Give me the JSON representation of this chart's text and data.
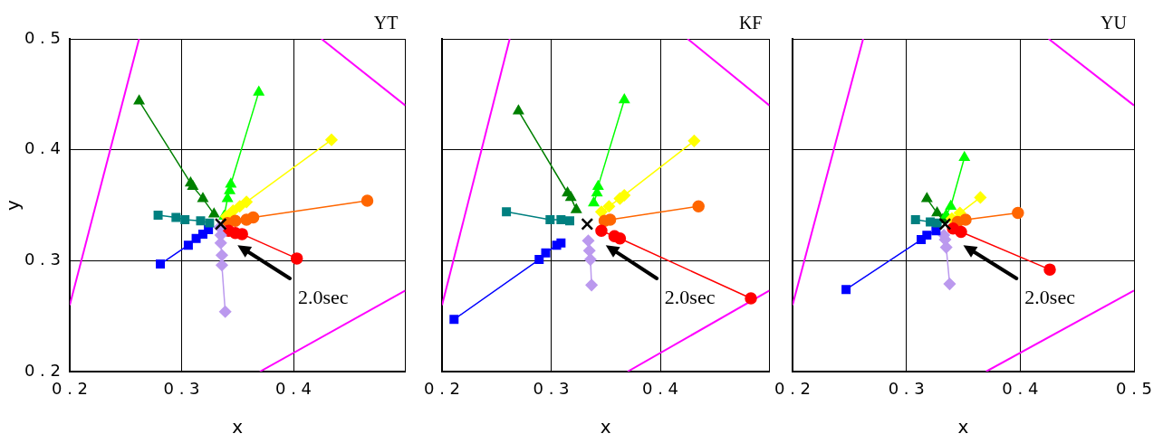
{
  "chart_data": [
    {
      "type": "line",
      "title": "YT",
      "xlabel": "x",
      "ylabel": "y",
      "xlim": [
        0.2,
        0.5
      ],
      "ylim": [
        0.2,
        0.5
      ],
      "xticks": [
        0.2,
        0.3,
        0.4,
        {
          "value": 0.5,
          "label": null
        }
      ],
      "yticks": [
        0.2,
        0.3,
        0.4,
        0.5
      ],
      "grid": true,
      "legend": false,
      "annotations": [
        "2.0sec"
      ],
      "series": [
        {
          "color": "#ff00ff",
          "marker": "none",
          "x": [
            0.2,
            0.262
          ],
          "values": [
            0.26,
            0.5
          ]
        },
        {
          "color": "#ff00ff",
          "marker": "none",
          "x": [
            0.425,
            0.5
          ],
          "values": [
            0.5,
            0.44
          ]
        },
        {
          "color": "#ff00ff",
          "marker": "none",
          "x": [
            0.37,
            0.5
          ],
          "values": [
            0.2,
            0.273
          ]
        },
        {
          "color": "#008000",
          "marker": "triangle",
          "x": [
            0.262,
            0.308,
            0.31,
            0.319,
            0.329
          ],
          "values": [
            0.444,
            0.37,
            0.367,
            0.356,
            0.342
          ]
        },
        {
          "color": "#00ff00",
          "marker": "triangle",
          "x": [
            0.369,
            0.344,
            0.343,
            0.341,
            0.338
          ],
          "values": [
            0.452,
            0.369,
            0.363,
            0.356,
            0.34
          ]
        },
        {
          "color": "#ffff00",
          "marker": "diamond",
          "x": [
            0.434,
            0.358,
            0.352,
            0.346,
            0.34
          ],
          "values": [
            0.409,
            0.353,
            0.349,
            0.345,
            0.34
          ]
        },
        {
          "color": "#ff6600",
          "marker": "circle",
          "x": [
            0.466,
            0.364,
            0.358,
            0.348,
            0.341
          ],
          "values": [
            0.354,
            0.339,
            0.337,
            0.336,
            0.334
          ]
        },
        {
          "color": "#ff0000",
          "marker": "circle",
          "x": [
            0.403,
            0.354,
            0.348,
            0.342
          ],
          "values": [
            0.302,
            0.324,
            0.325,
            0.327
          ]
        },
        {
          "color": "#bb99ee",
          "marker": "diamond",
          "x": [
            0.339,
            0.336,
            0.336,
            0.335,
            0.335,
            0.334
          ],
          "values": [
            0.254,
            0.296,
            0.305,
            0.316,
            0.323,
            0.33
          ]
        },
        {
          "color": "#0000ff",
          "marker": "square",
          "x": [
            0.281,
            0.306,
            0.313,
            0.319,
            0.324
          ],
          "values": [
            0.297,
            0.314,
            0.32,
            0.324,
            0.328
          ]
        },
        {
          "color": "#008080",
          "marker": "square",
          "x": [
            0.279,
            0.295,
            0.303,
            0.317,
            0.325
          ],
          "values": [
            0.341,
            0.339,
            0.337,
            0.336,
            0.334
          ]
        },
        {
          "type": "scatter",
          "color": "#000000",
          "marker": "cross",
          "x": [
            0.335
          ],
          "values": [
            0.333
          ]
        }
      ]
    },
    {
      "type": "line",
      "title": "KF",
      "xlabel": "x",
      "xlim": [
        0.2,
        0.5
      ],
      "ylim": [
        0.2,
        0.5
      ],
      "xticks": [
        0.2,
        0.3,
        0.4,
        {
          "value": 0.5,
          "label": null
        }
      ],
      "yticks": [
        0.2,
        0.3,
        0.4,
        0.5
      ],
      "grid": true,
      "legend": false,
      "tick_labels": "x",
      "annotations": [
        "2.0sec"
      ],
      "series": [
        {
          "color": "#ff00ff",
          "marker": "none",
          "x": [
            0.2,
            0.262
          ],
          "values": [
            0.26,
            0.5
          ]
        },
        {
          "color": "#ff00ff",
          "marker": "none",
          "x": [
            0.425,
            0.5
          ],
          "values": [
            0.5,
            0.44
          ]
        },
        {
          "color": "#ff00ff",
          "marker": "none",
          "x": [
            0.37,
            0.5
          ],
          "values": [
            0.2,
            0.273
          ]
        },
        {
          "color": "#008000",
          "marker": "triangle",
          "x": [
            0.27,
            0.315,
            0.318,
            0.323
          ],
          "values": [
            0.435,
            0.361,
            0.357,
            0.346
          ]
        },
        {
          "color": "#00ff00",
          "marker": "triangle",
          "x": [
            0.367,
            0.343,
            0.342,
            0.339
          ],
          "values": [
            0.445,
            0.367,
            0.361,
            0.352
          ]
        },
        {
          "color": "#ffff00",
          "marker": "diamond",
          "x": [
            0.431,
            0.367,
            0.363,
            0.353,
            0.346
          ],
          "values": [
            0.408,
            0.359,
            0.356,
            0.349,
            0.344
          ]
        },
        {
          "color": "#ff6600",
          "marker": "circle",
          "x": [
            0.435,
            0.354,
            0.349
          ],
          "values": [
            0.349,
            0.337,
            0.336
          ]
        },
        {
          "color": "#ff0000",
          "marker": "circle",
          "x": [
            0.483,
            0.363,
            0.358,
            0.346
          ],
          "values": [
            0.266,
            0.32,
            0.322,
            0.327
          ]
        },
        {
          "color": "#bb99ee",
          "marker": "diamond",
          "x": [
            0.337,
            0.336,
            0.335,
            0.334
          ],
          "values": [
            0.278,
            0.301,
            0.309,
            0.318
          ]
        },
        {
          "color": "#0000ff",
          "marker": "square",
          "x": [
            0.211,
            0.289,
            0.295,
            0.305,
            0.309
          ],
          "values": [
            0.247,
            0.301,
            0.307,
            0.314,
            0.316
          ]
        },
        {
          "color": "#008080",
          "marker": "square",
          "x": [
            0.259,
            0.299,
            0.309,
            0.317
          ],
          "values": [
            0.344,
            0.337,
            0.337,
            0.336
          ]
        },
        {
          "type": "scatter",
          "color": "#000000",
          "marker": "cross",
          "x": [
            0.333
          ],
          "values": [
            0.333
          ]
        }
      ]
    },
    {
      "type": "line",
      "title": "YU",
      "xlabel": "x",
      "xlim": [
        0.2,
        0.5
      ],
      "ylim": [
        0.2,
        0.5
      ],
      "xticks": [
        0.2,
        0.3,
        0.4,
        0.5
      ],
      "yticks": [
        0.2,
        0.3,
        0.4,
        0.5
      ],
      "grid": true,
      "legend": false,
      "tick_labels": "x",
      "annotations": [
        "2.0sec"
      ],
      "series": [
        {
          "color": "#ff00ff",
          "marker": "none",
          "x": [
            0.2,
            0.262
          ],
          "values": [
            0.26,
            0.5
          ]
        },
        {
          "color": "#ff00ff",
          "marker": "none",
          "x": [
            0.425,
            0.5
          ],
          "values": [
            0.5,
            0.44
          ]
        },
        {
          "color": "#ff00ff",
          "marker": "none",
          "x": [
            0.37,
            0.5
          ],
          "values": [
            0.2,
            0.273
          ]
        },
        {
          "color": "#008000",
          "marker": "triangle",
          "x": [
            0.318,
            0.327,
            0.332
          ],
          "values": [
            0.356,
            0.343,
            0.337
          ]
        },
        {
          "color": "#00ff00",
          "marker": "triangle",
          "x": [
            0.351,
            0.339,
            0.335
          ],
          "values": [
            0.393,
            0.349,
            0.341
          ]
        },
        {
          "color": "#ffff00",
          "marker": "diamond",
          "x": [
            0.365,
            0.347,
            0.34
          ],
          "values": [
            0.357,
            0.343,
            0.338
          ]
        },
        {
          "color": "#ff6600",
          "marker": "circle",
          "x": [
            0.398,
            0.352,
            0.345
          ],
          "values": [
            0.343,
            0.337,
            0.335
          ]
        },
        {
          "color": "#ff0000",
          "marker": "circle",
          "x": [
            0.426,
            0.348,
            0.341
          ],
          "values": [
            0.292,
            0.326,
            0.329
          ]
        },
        {
          "color": "#bb99ee",
          "marker": "diamond",
          "x": [
            0.338,
            0.335,
            0.334,
            0.333
          ],
          "values": [
            0.279,
            0.312,
            0.319,
            0.323
          ]
        },
        {
          "color": "#0000ff",
          "marker": "square",
          "x": [
            0.247,
            0.313,
            0.318,
            0.326
          ],
          "values": [
            0.274,
            0.319,
            0.323,
            0.327
          ]
        },
        {
          "color": "#008080",
          "marker": "square",
          "x": [
            0.308,
            0.321,
            0.327
          ],
          "values": [
            0.337,
            0.335,
            0.334
          ]
        },
        {
          "type": "scatter",
          "color": "#000000",
          "marker": "cross",
          "x": [
            0.334
          ],
          "values": [
            0.333
          ]
        }
      ]
    }
  ]
}
